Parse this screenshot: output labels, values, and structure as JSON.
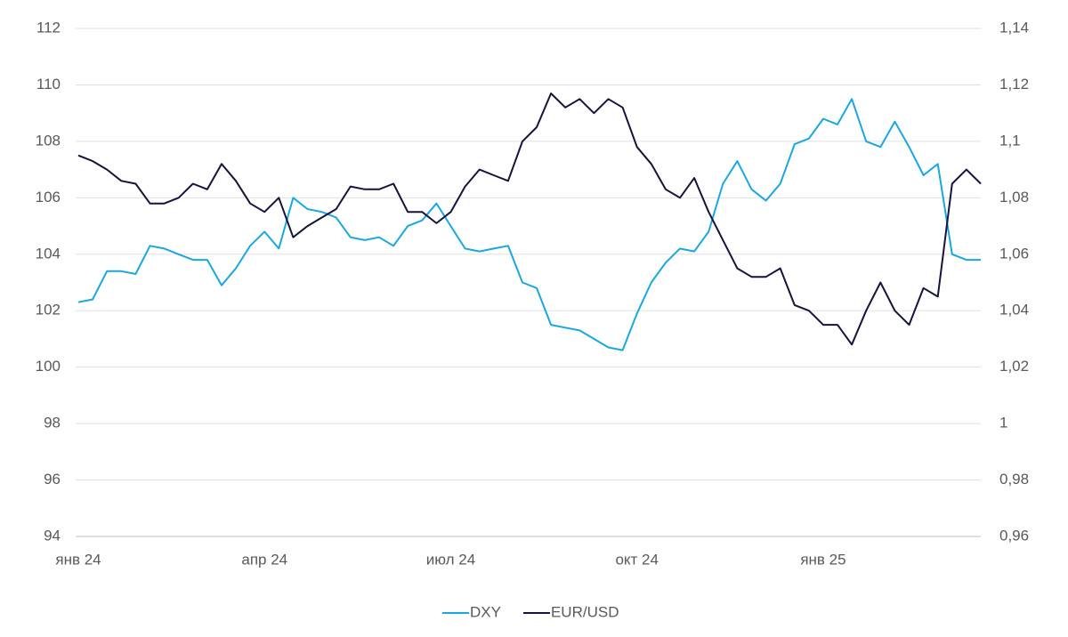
{
  "chart_data": {
    "type": "line",
    "categories": [
      "янв 24",
      null,
      null,
      null,
      null,
      null,
      null,
      null,
      null,
      null,
      null,
      null,
      null,
      "апр 24",
      null,
      null,
      null,
      null,
      null,
      null,
      null,
      null,
      null,
      null,
      null,
      null,
      "июл 24",
      null,
      null,
      null,
      null,
      null,
      null,
      null,
      null,
      null,
      null,
      null,
      null,
      "окт 24",
      null,
      null,
      null,
      null,
      null,
      null,
      null,
      null,
      null,
      null,
      null,
      null,
      "янв 25",
      null,
      null,
      null,
      null,
      null,
      null,
      null,
      null,
      null,
      null,
      null
    ],
    "series": [
      {
        "name": "DXY",
        "color": "#1aa7e0",
        "axis": "y",
        "values": [
          102.3,
          102.4,
          103.4,
          103.4,
          103.3,
          104.3,
          104.2,
          104.0,
          103.8,
          103.8,
          102.9,
          103.5,
          104.3,
          104.8,
          104.2,
          106.0,
          105.6,
          105.5,
          105.3,
          104.6,
          104.5,
          104.6,
          104.3,
          105.0,
          105.2,
          105.8,
          105.0,
          104.2,
          104.1,
          104.2,
          104.3,
          103.0,
          102.8,
          101.5,
          101.4,
          101.3,
          101.0,
          100.7,
          100.6,
          101.9,
          103.0,
          103.7,
          104.2,
          104.1,
          104.8,
          106.5,
          107.3,
          106.3,
          105.9,
          106.5,
          107.9,
          108.1,
          108.8,
          108.6,
          109.5,
          108.0,
          107.8,
          108.7,
          107.8,
          106.8,
          107.2,
          104.0,
          103.8,
          103.8
        ]
      },
      {
        "name": "EUR/USD",
        "color": "#14143c",
        "axis": "y2",
        "values": [
          1.095,
          1.093,
          1.09,
          1.086,
          1.085,
          1.078,
          1.078,
          1.08,
          1.085,
          1.083,
          1.092,
          1.086,
          1.078,
          1.075,
          1.08,
          1.066,
          1.07,
          1.073,
          1.076,
          1.084,
          1.083,
          1.083,
          1.085,
          1.075,
          1.075,
          1.071,
          1.075,
          1.084,
          1.09,
          1.088,
          1.086,
          1.1,
          1.105,
          1.117,
          1.112,
          1.115,
          1.11,
          1.115,
          1.112,
          1.098,
          1.092,
          1.083,
          1.08,
          1.087,
          1.075,
          1.065,
          1.055,
          1.052,
          1.052,
          1.055,
          1.042,
          1.04,
          1.035,
          1.035,
          1.028,
          1.04,
          1.05,
          1.04,
          1.035,
          1.048,
          1.045,
          1.085,
          1.09,
          1.085
        ]
      }
    ],
    "ylim": [
      94,
      112
    ],
    "yticks": [
      94,
      96,
      98,
      100,
      102,
      104,
      106,
      108,
      110,
      112
    ],
    "y2lim": [
      0.96,
      1.14
    ],
    "y2ticks": [
      {
        "value": 0.96,
        "label": "0,96"
      },
      {
        "value": 0.98,
        "label": "0,98"
      },
      1,
      {
        "value": 1.02,
        "label": "1,02"
      },
      {
        "value": 1.04,
        "label": "1,04"
      },
      {
        "value": 1.06,
        "label": "1,06"
      },
      {
        "value": 1.08,
        "label": "1,08"
      },
      {
        "value": 1.1,
        "label": "1,1"
      },
      {
        "value": 1.12,
        "label": "1,12"
      },
      {
        "value": 1.14,
        "label": "1,14"
      }
    ],
    "grid": true,
    "legend": "bottom"
  }
}
